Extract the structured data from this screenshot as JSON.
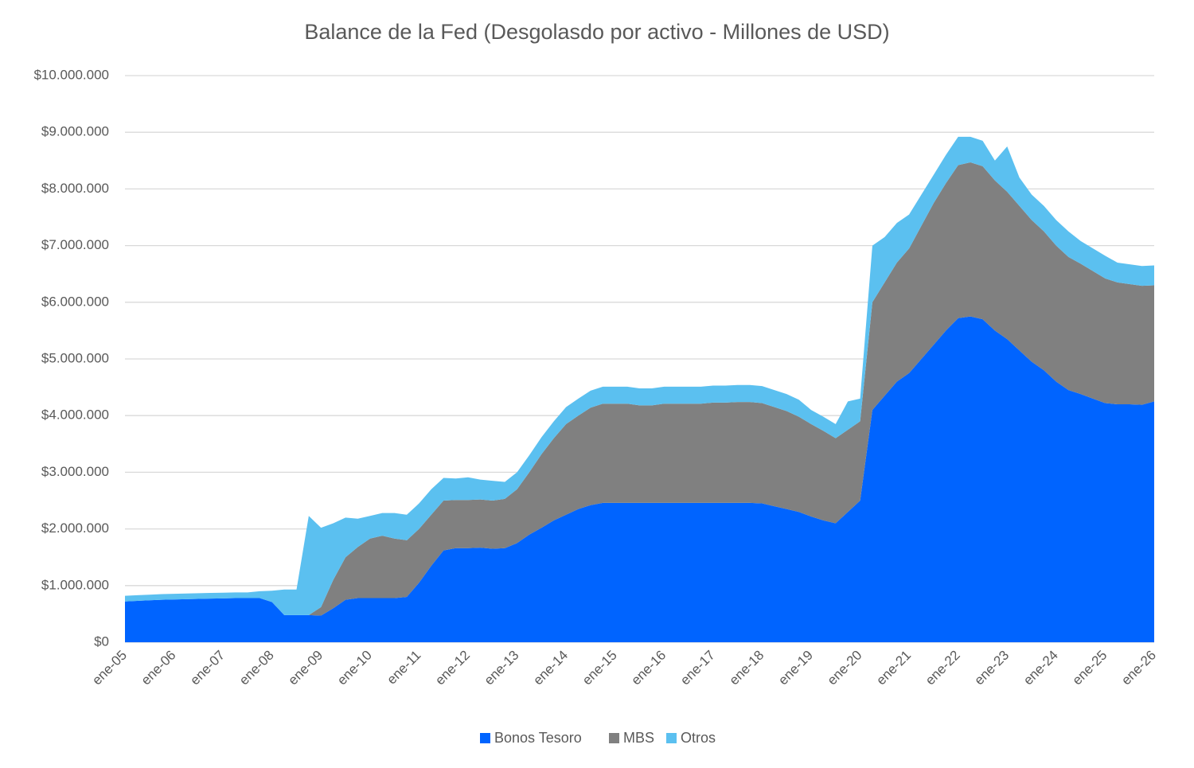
{
  "chart_data": {
    "type": "stacked-area",
    "title": "Balance de la Fed (Desgolasdo por activo - Millones de USD)",
    "categories": [
      "ene-05",
      null,
      null,
      null,
      "ene-06",
      null,
      null,
      null,
      "ene-07",
      null,
      null,
      null,
      "ene-08",
      null,
      null,
      null,
      "ene-09",
      null,
      null,
      null,
      "ene-10",
      null,
      null,
      null,
      "ene-11",
      null,
      null,
      null,
      "ene-12",
      null,
      null,
      null,
      "ene-13",
      null,
      null,
      null,
      "ene-14",
      null,
      null,
      null,
      "ene-15",
      null,
      null,
      null,
      "ene-16",
      null,
      null,
      null,
      "ene-17",
      null,
      null,
      null,
      "ene-18",
      null,
      null,
      null,
      "ene-19",
      null,
      null,
      null,
      "ene-20",
      null,
      null,
      null,
      "ene-21",
      null,
      null,
      null,
      "ene-22",
      null,
      null,
      null,
      "ene-23",
      null,
      null,
      null,
      "ene-24",
      null,
      null,
      null,
      "ene-25",
      null,
      null,
      null,
      "ene-26"
    ],
    "series": [
      {
        "name": "Bonos Tesoro",
        "color": "#0064ff",
        "values": [
          720000,
          730000,
          740000,
          750000,
          755000,
          760000,
          765000,
          770000,
          775000,
          780000,
          780000,
          780000,
          710000,
          480000,
          480000,
          480000,
          470000,
          600000,
          750000,
          780000,
          780000,
          780000,
          780000,
          800000,
          1050000,
          1350000,
          1620000,
          1660000,
          1660000,
          1670000,
          1650000,
          1660000,
          1750000,
          1900000,
          2020000,
          2150000,
          2250000,
          2350000,
          2420000,
          2460000,
          2460000,
          2460000,
          2460000,
          2460000,
          2460000,
          2460000,
          2460000,
          2460000,
          2460000,
          2460000,
          2460000,
          2460000,
          2450000,
          2400000,
          2350000,
          2300000,
          2220000,
          2150000,
          2100000,
          2300000,
          2500000,
          4100000,
          4350000,
          4600000,
          4750000,
          5000000,
          5250000,
          5500000,
          5720000,
          5750000,
          5700000,
          5500000,
          5350000,
          5150000,
          4950000,
          4800000,
          4600000,
          4450000,
          4380000,
          4300000,
          4220000,
          4200000,
          4200000,
          4190000,
          4250000
        ]
      },
      {
        "name": "MBS",
        "color": "#808080",
        "values": [
          0,
          0,
          0,
          0,
          0,
          0,
          0,
          0,
          0,
          0,
          0,
          0,
          0,
          0,
          0,
          0,
          150000,
          500000,
          750000,
          900000,
          1050000,
          1100000,
          1050000,
          1000000,
          950000,
          900000,
          880000,
          850000,
          850000,
          850000,
          850000,
          870000,
          950000,
          1100000,
          1300000,
          1450000,
          1600000,
          1650000,
          1720000,
          1750000,
          1750000,
          1750000,
          1720000,
          1720000,
          1750000,
          1750000,
          1750000,
          1750000,
          1770000,
          1770000,
          1780000,
          1780000,
          1770000,
          1750000,
          1730000,
          1680000,
          1630000,
          1580000,
          1500000,
          1450000,
          1400000,
          1900000,
          2000000,
          2100000,
          2200000,
          2350000,
          2500000,
          2600000,
          2700000,
          2720000,
          2700000,
          2650000,
          2600000,
          2550000,
          2500000,
          2450000,
          2400000,
          2350000,
          2300000,
          2250000,
          2200000,
          2150000,
          2120000,
          2100000,
          2050000
        ]
      },
      {
        "name": "Otros",
        "color": "#5bc0f0",
        "values": [
          100000,
          100000,
          100000,
          100000,
          100000,
          100000,
          100000,
          100000,
          100000,
          100000,
          100000,
          120000,
          200000,
          450000,
          450000,
          1750000,
          1400000,
          1000000,
          700000,
          500000,
          400000,
          400000,
          450000,
          450000,
          450000,
          450000,
          400000,
          380000,
          400000,
          350000,
          350000,
          300000,
          300000,
          300000,
          300000,
          300000,
          300000,
          300000,
          300000,
          300000,
          300000,
          300000,
          300000,
          300000,
          300000,
          300000,
          300000,
          300000,
          300000,
          300000,
          300000,
          300000,
          300000,
          300000,
          300000,
          300000,
          250000,
          250000,
          250000,
          500000,
          400000,
          1000000,
          800000,
          700000,
          600000,
          550000,
          500000,
          500000,
          500000,
          450000,
          450000,
          350000,
          800000,
          500000,
          450000,
          450000,
          450000,
          450000,
          400000,
          400000,
          400000,
          350000,
          350000,
          350000,
          350000
        ]
      }
    ],
    "ylim": [
      0,
      10000000
    ],
    "yticks": [
      {
        "value": 0,
        "label": "$0"
      },
      {
        "value": 1000000,
        "label": "$1.000.000"
      },
      {
        "value": 2000000,
        "label": "$2.000.000"
      },
      {
        "value": 3000000,
        "label": "$3.000.000"
      },
      {
        "value": 4000000,
        "label": "$4.000.000"
      },
      {
        "value": 5000000,
        "label": "$5.000.000"
      },
      {
        "value": 6000000,
        "label": "$6.000.000"
      },
      {
        "value": 7000000,
        "label": "$7.000.000"
      },
      {
        "value": 8000000,
        "label": "$8.000.000"
      },
      {
        "value": 9000000,
        "label": "$9.000.000"
      },
      {
        "value": 10000000,
        "label": "$10.000.000"
      }
    ],
    "grid": true,
    "legend": "bottom"
  }
}
